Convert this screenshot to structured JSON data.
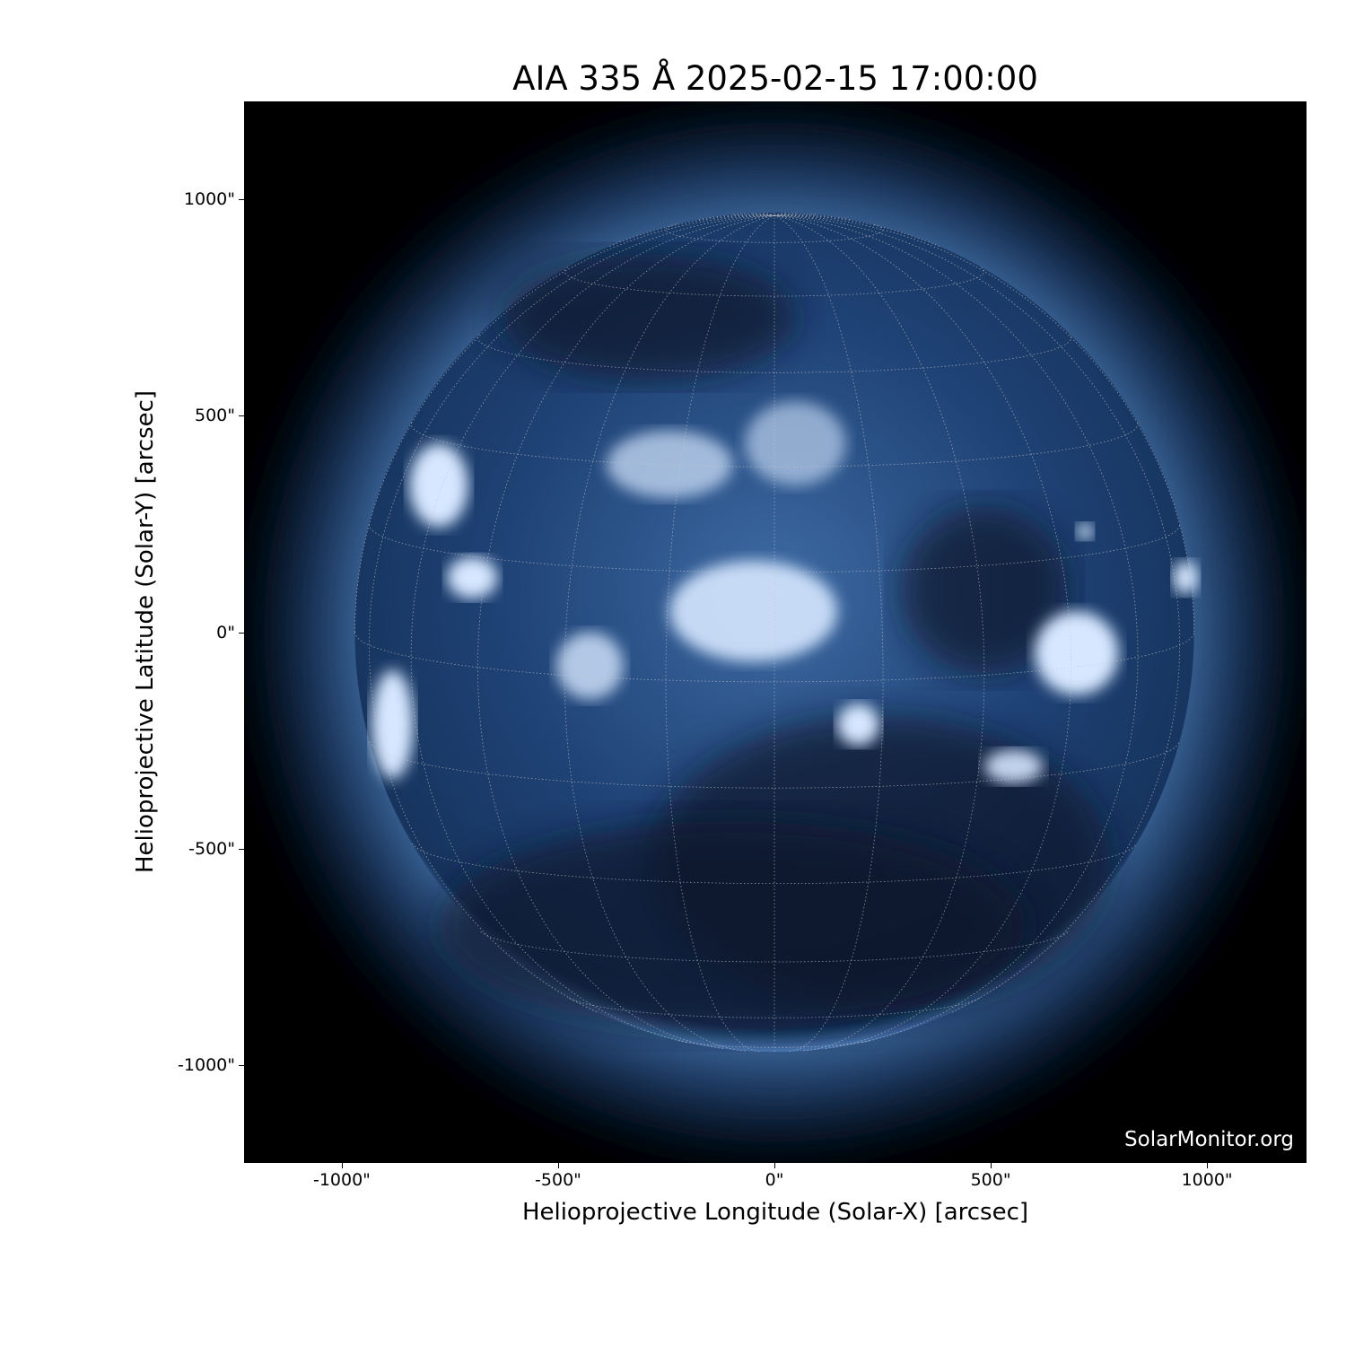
{
  "chart_data": {
    "type": "heatmap",
    "title": "AIA 335 Å 2025-02-15 17:00:00",
    "xlabel": "Helioprojective Longitude (Solar-X) [arcsec]",
    "ylabel": "Helioprojective Latitude (Solar-Y) [arcsec]",
    "xlim": [
      -1226,
      1230
    ],
    "ylim": [
      -1226,
      1226
    ],
    "x_ticks": [
      -1000,
      -500,
      0,
      500,
      1000
    ],
    "x_tick_labels": [
      "-1000\"",
      "-500\"",
      "0\"",
      "500\"",
      "1000\""
    ],
    "y_ticks": [
      1000,
      500,
      0,
      -500,
      -1000
    ],
    "y_tick_labels": [
      "1000\"",
      "500\"",
      "0\"",
      "-500\"",
      "-1000\""
    ],
    "solar_radius_arcsec": 970,
    "grid": true,
    "grid_spacing_deg": 15,
    "colormap": "sdoaia335",
    "colors": {
      "background": "#000000",
      "disk": "#1c3f6e",
      "bright": "#e8f2ff",
      "grid": "#c8c8c8"
    }
  },
  "watermark": "SolarMonitor.org"
}
